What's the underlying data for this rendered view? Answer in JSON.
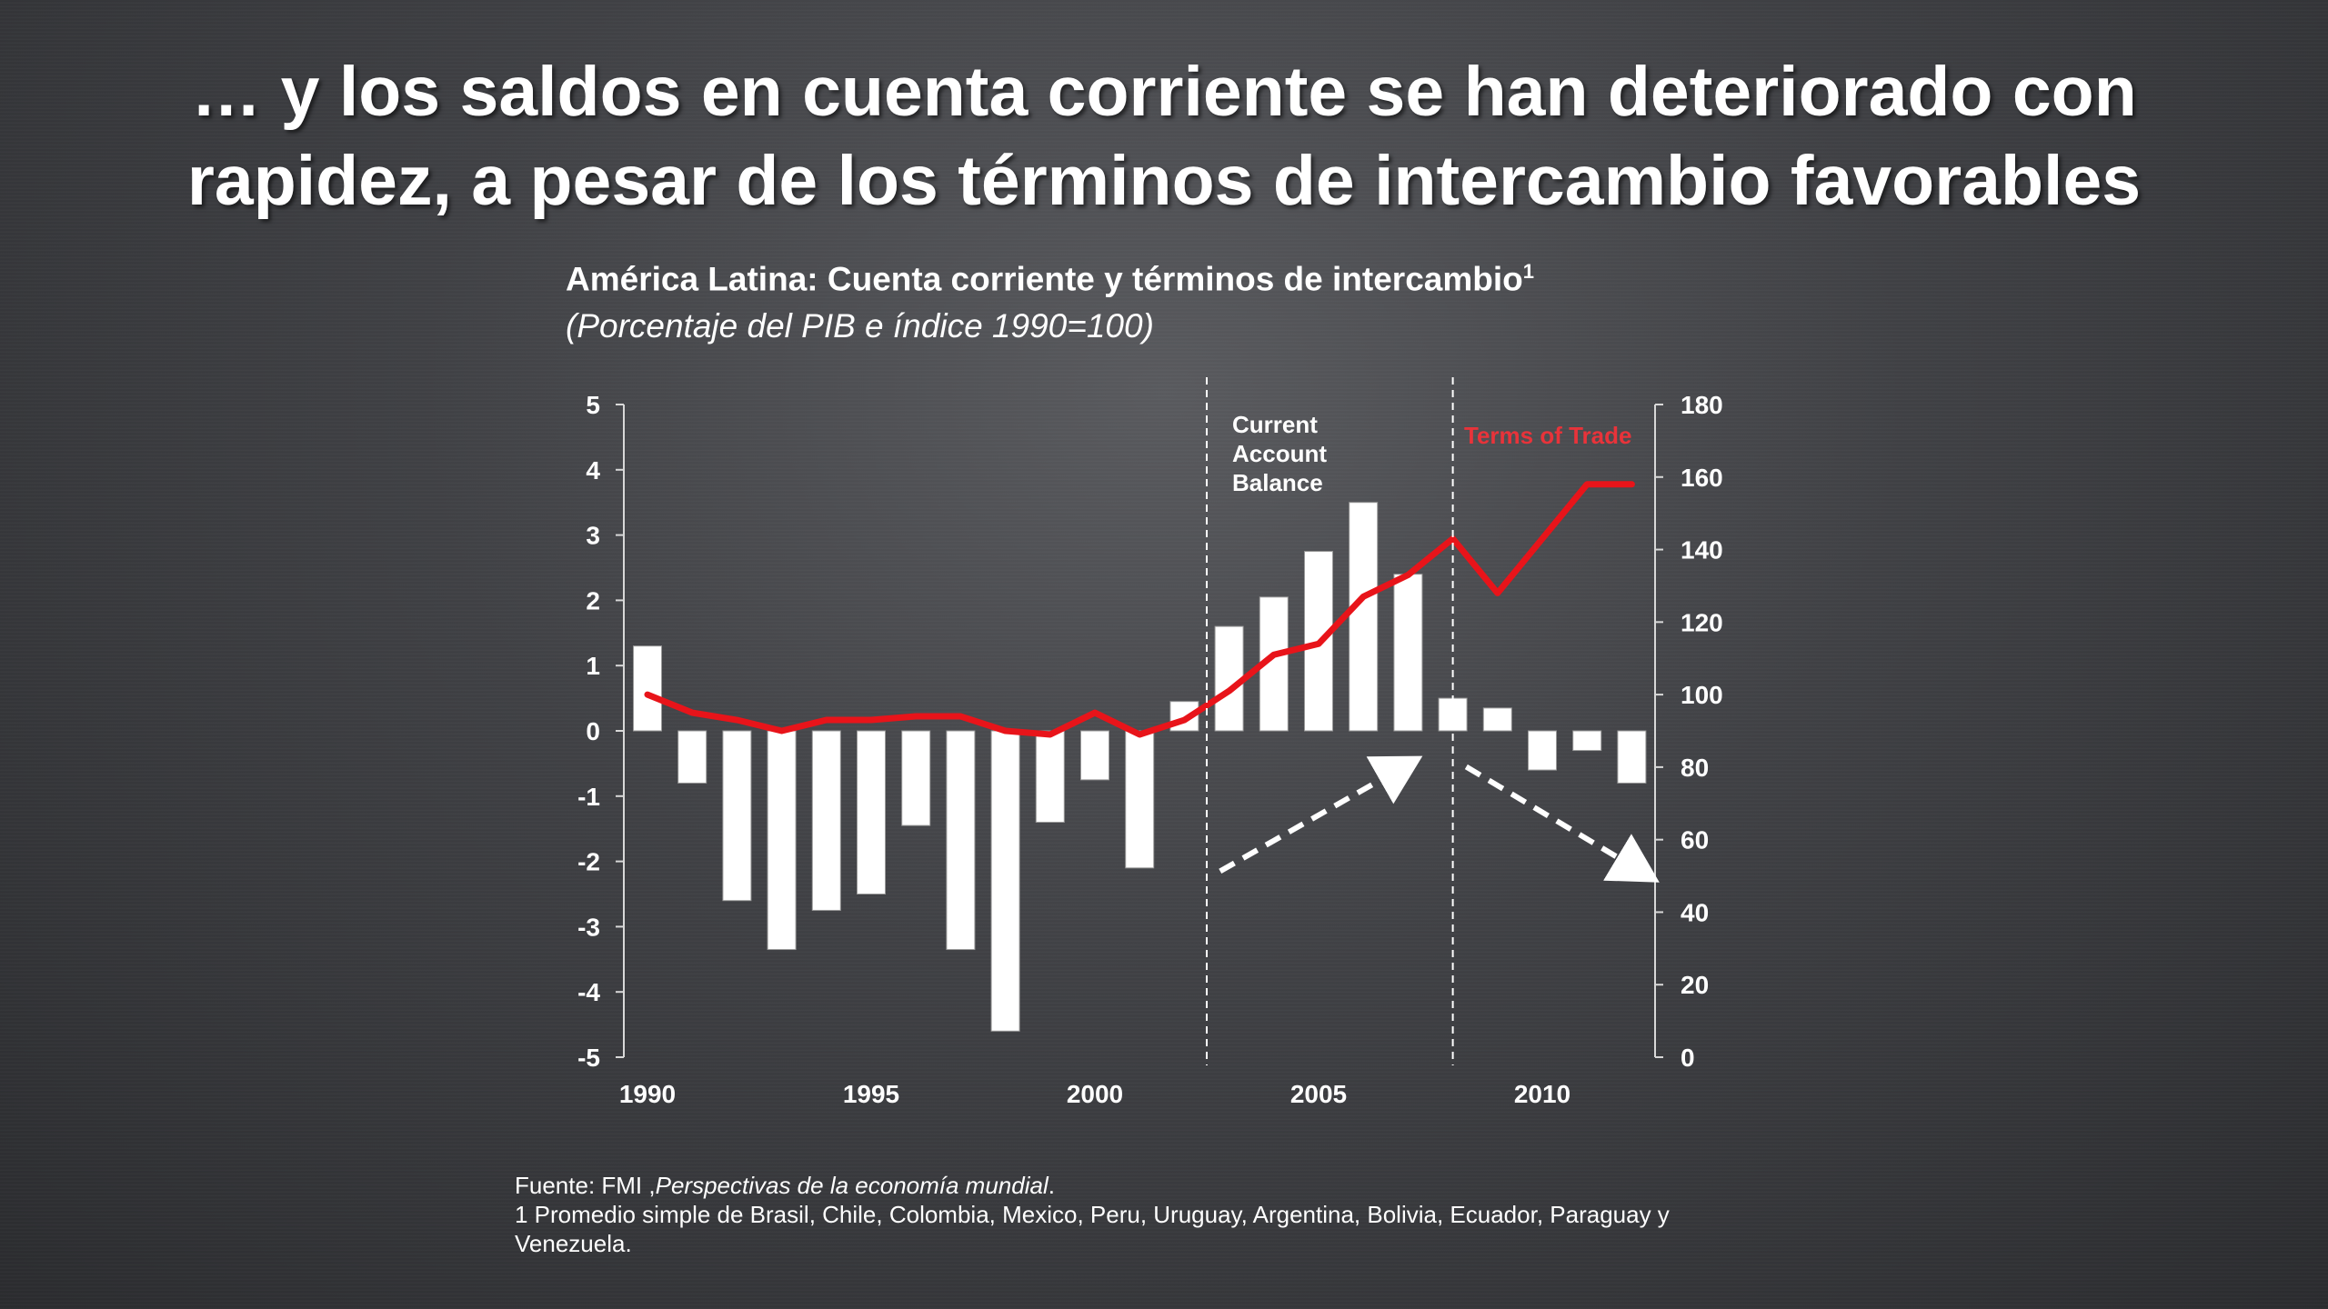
{
  "slide": {
    "title_line1": "… y los saldos en cuenta corriente se han deteriorado con",
    "title_line2": "rapidez, a pesar de los términos de intercambio favorables"
  },
  "chart_heading": {
    "title": "América Latina: Cuenta corriente y términos de intercambio",
    "title_sup": "1",
    "subtitle": "(Porcentaje del PIB e índice 1990=100)"
  },
  "source": {
    "prefix": "Fuente: FMI ,",
    "publication": "Perspectivas de la economía mundial",
    "suffix": ".",
    "note": "1 Promedio simple de Brasil, Chile, Colombia, Mexico, Peru, Uruguay, Argentina, Bolivia, Ecuador, Paraguay y Venezuela."
  },
  "colors": {
    "bar_fill": "#ffffff",
    "line": "#e8141a",
    "terms_label": "#e8333a",
    "axis": "#d8d8d8"
  },
  "chart_data": {
    "type": "bar+line",
    "x": [
      1990,
      1991,
      1992,
      1993,
      1994,
      1995,
      1996,
      1997,
      1998,
      1999,
      2000,
      2001,
      2002,
      2003,
      2004,
      2005,
      2006,
      2007,
      2008,
      2009,
      2010,
      2011,
      2012
    ],
    "x_tick_labels": [
      "1990",
      "1995",
      "2000",
      "2005",
      "2010"
    ],
    "series": [
      {
        "name": "Current Account Balance",
        "type": "bar",
        "axis": "left",
        "values": [
          1.3,
          -0.8,
          -2.6,
          -3.35,
          -2.75,
          -2.5,
          -1.45,
          -3.35,
          -4.6,
          -1.4,
          -0.75,
          -2.1,
          0.45,
          1.6,
          2.05,
          2.75,
          3.5,
          2.4,
          0.5,
          0.35,
          -0.6,
          -0.3,
          -0.8
        ]
      },
      {
        "name": "Terms of Trade",
        "type": "line",
        "axis": "right",
        "values": [
          100,
          95,
          93,
          90,
          93,
          93,
          94,
          94,
          90,
          89,
          95,
          89,
          93,
          101,
          111,
          114,
          127,
          133,
          143,
          128,
          143,
          158,
          158
        ]
      }
    ],
    "y_left": {
      "min": -5,
      "max": 5,
      "ticks": [
        "5",
        "4",
        "3",
        "2",
        "1",
        "0",
        "-1",
        "-2",
        "-3",
        "-4",
        "-5"
      ]
    },
    "y_right": {
      "min": 0,
      "max": 180,
      "ticks": [
        "180",
        "160",
        "140",
        "120",
        "100",
        "80",
        "60",
        "40",
        "20",
        "0"
      ]
    },
    "annotations": {
      "current_account_label": [
        "Current",
        "Account",
        "Balance"
      ],
      "terms_of_trade_label": "Terms of Trade",
      "dividers_at": [
        2002.5,
        2008
      ],
      "arrows": [
        {
          "from": [
            2002.8,
            -2.15
          ],
          "to": [
            2006.9,
            -0.55
          ],
          "direction": "up"
        },
        {
          "from": [
            2008.3,
            -0.55
          ],
          "to": [
            2012.2,
            -2.15
          ],
          "direction": "down"
        }
      ]
    }
  }
}
